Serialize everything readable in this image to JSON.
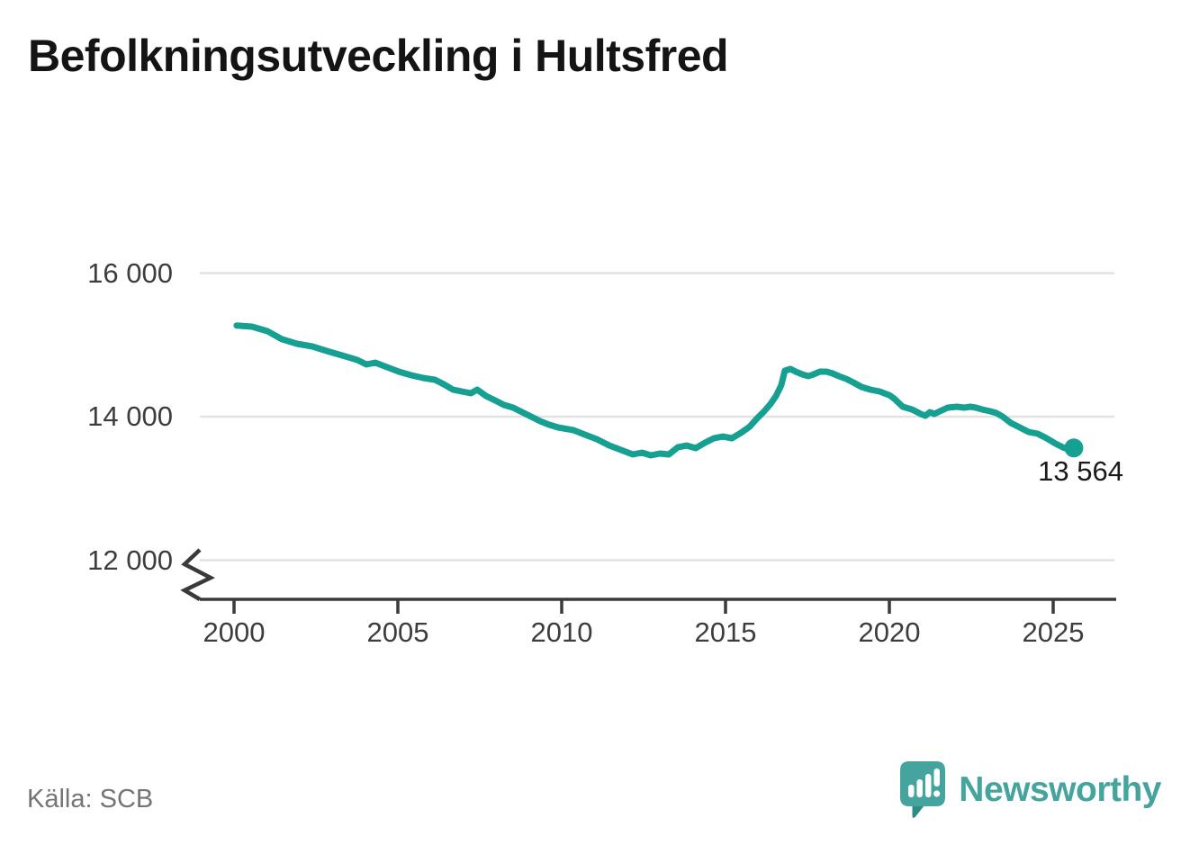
{
  "title": "Befolkningsutveckling i Hultsfred",
  "source": "Källa: SCB",
  "brand": {
    "wordmark": "Newsworthy"
  },
  "end_label": "13 564",
  "colors": {
    "line": "#16A092",
    "end_dot": "#16A092",
    "grid": "#E2E2E2",
    "axis": "#3A3A3A",
    "title_text": "#141414",
    "tick_text": "#3D3D3D",
    "end_label_text": "#1A1A1A",
    "source_text": "#757575",
    "brand_teal": "#45A49D",
    "brand_teal_dark": "#2F8C85"
  },
  "chart_data": {
    "type": "line",
    "title": "Befolkningsutveckling i Hultsfred",
    "series_name": "Befolkning i Hultsfred",
    "xlabel": "",
    "ylabel": "",
    "x_ticks": [
      2000,
      2005,
      2010,
      2015,
      2020,
      2025
    ],
    "x_tick_labels": [
      "2000",
      "2005",
      "2010",
      "2015",
      "2020",
      "2025"
    ],
    "y_tick_values": [
      16000,
      14000,
      12000
    ],
    "y_tick_labels": [
      "16 000",
      "14 000",
      "12 000"
    ],
    "grid": "horizontal-only",
    "axis_break_bottom": true,
    "xlim": [
      1999.0,
      2027.0
    ],
    "ylim": [
      11500,
      16500
    ],
    "legend": "none",
    "last_value": 13564,
    "last_value_label": "13 564",
    "x": [
      2000.08,
      2000.55,
      2001.02,
      2001.46,
      2001.92,
      2002.39,
      2002.83,
      2003.3,
      2003.76,
      2004.04,
      2004.31,
      2004.67,
      2005.03,
      2005.41,
      2005.77,
      2006.13,
      2006.4,
      2006.68,
      2006.95,
      2007.23,
      2007.42,
      2007.69,
      2007.97,
      2008.24,
      2008.52,
      2008.79,
      2009.07,
      2009.34,
      2009.62,
      2009.89,
      2010.36,
      2010.71,
      2011.07,
      2011.46,
      2011.81,
      2012.17,
      2012.45,
      2012.72,
      2013.0,
      2013.27,
      2013.54,
      2013.82,
      2014.09,
      2014.37,
      2014.64,
      2014.92,
      2015.19,
      2015.47,
      2015.74,
      2015.96,
      2016.18,
      2016.37,
      2016.54,
      2016.7,
      2016.81,
      2016.98,
      2017.14,
      2017.34,
      2017.53,
      2017.69,
      2017.88,
      2018.08,
      2018.27,
      2018.46,
      2018.68,
      2018.9,
      2019.15,
      2019.42,
      2019.7,
      2020.0,
      2020.15,
      2020.41,
      2020.69,
      2020.96,
      2021.1,
      2021.24,
      2021.37,
      2021.54,
      2021.78,
      2022.06,
      2022.28,
      2022.47,
      2022.64,
      2022.83,
      2023.08,
      2023.27,
      2023.46,
      2023.71,
      2023.98,
      2024.25,
      2024.53,
      2024.8,
      2025.08,
      2025.35,
      2025.63
    ],
    "y": [
      15270,
      15254,
      15191,
      15079,
      15016,
      14978,
      14915,
      14853,
      14790,
      14727,
      14752,
      14690,
      14627,
      14577,
      14539,
      14514,
      14451,
      14376,
      14351,
      14326,
      14376,
      14288,
      14226,
      14163,
      14125,
      14063,
      14000,
      13937,
      13887,
      13850,
      13812,
      13749,
      13686,
      13598,
      13536,
      13473,
      13498,
      13461,
      13486,
      13473,
      13573,
      13598,
      13561,
      13636,
      13698,
      13723,
      13698,
      13774,
      13861,
      13974,
      14075,
      14175,
      14288,
      14438,
      14639,
      14664,
      14627,
      14589,
      14564,
      14589,
      14627,
      14627,
      14602,
      14564,
      14527,
      14476,
      14414,
      14376,
      14351,
      14300,
      14250,
      14138,
      14100,
      14038,
      14013,
      14063,
      14038,
      14075,
      14125,
      14138,
      14125,
      14138,
      14125,
      14100,
      14075,
      14050,
      14000,
      13912,
      13850,
      13787,
      13762,
      13699,
      13623,
      13561,
      13564
    ]
  }
}
